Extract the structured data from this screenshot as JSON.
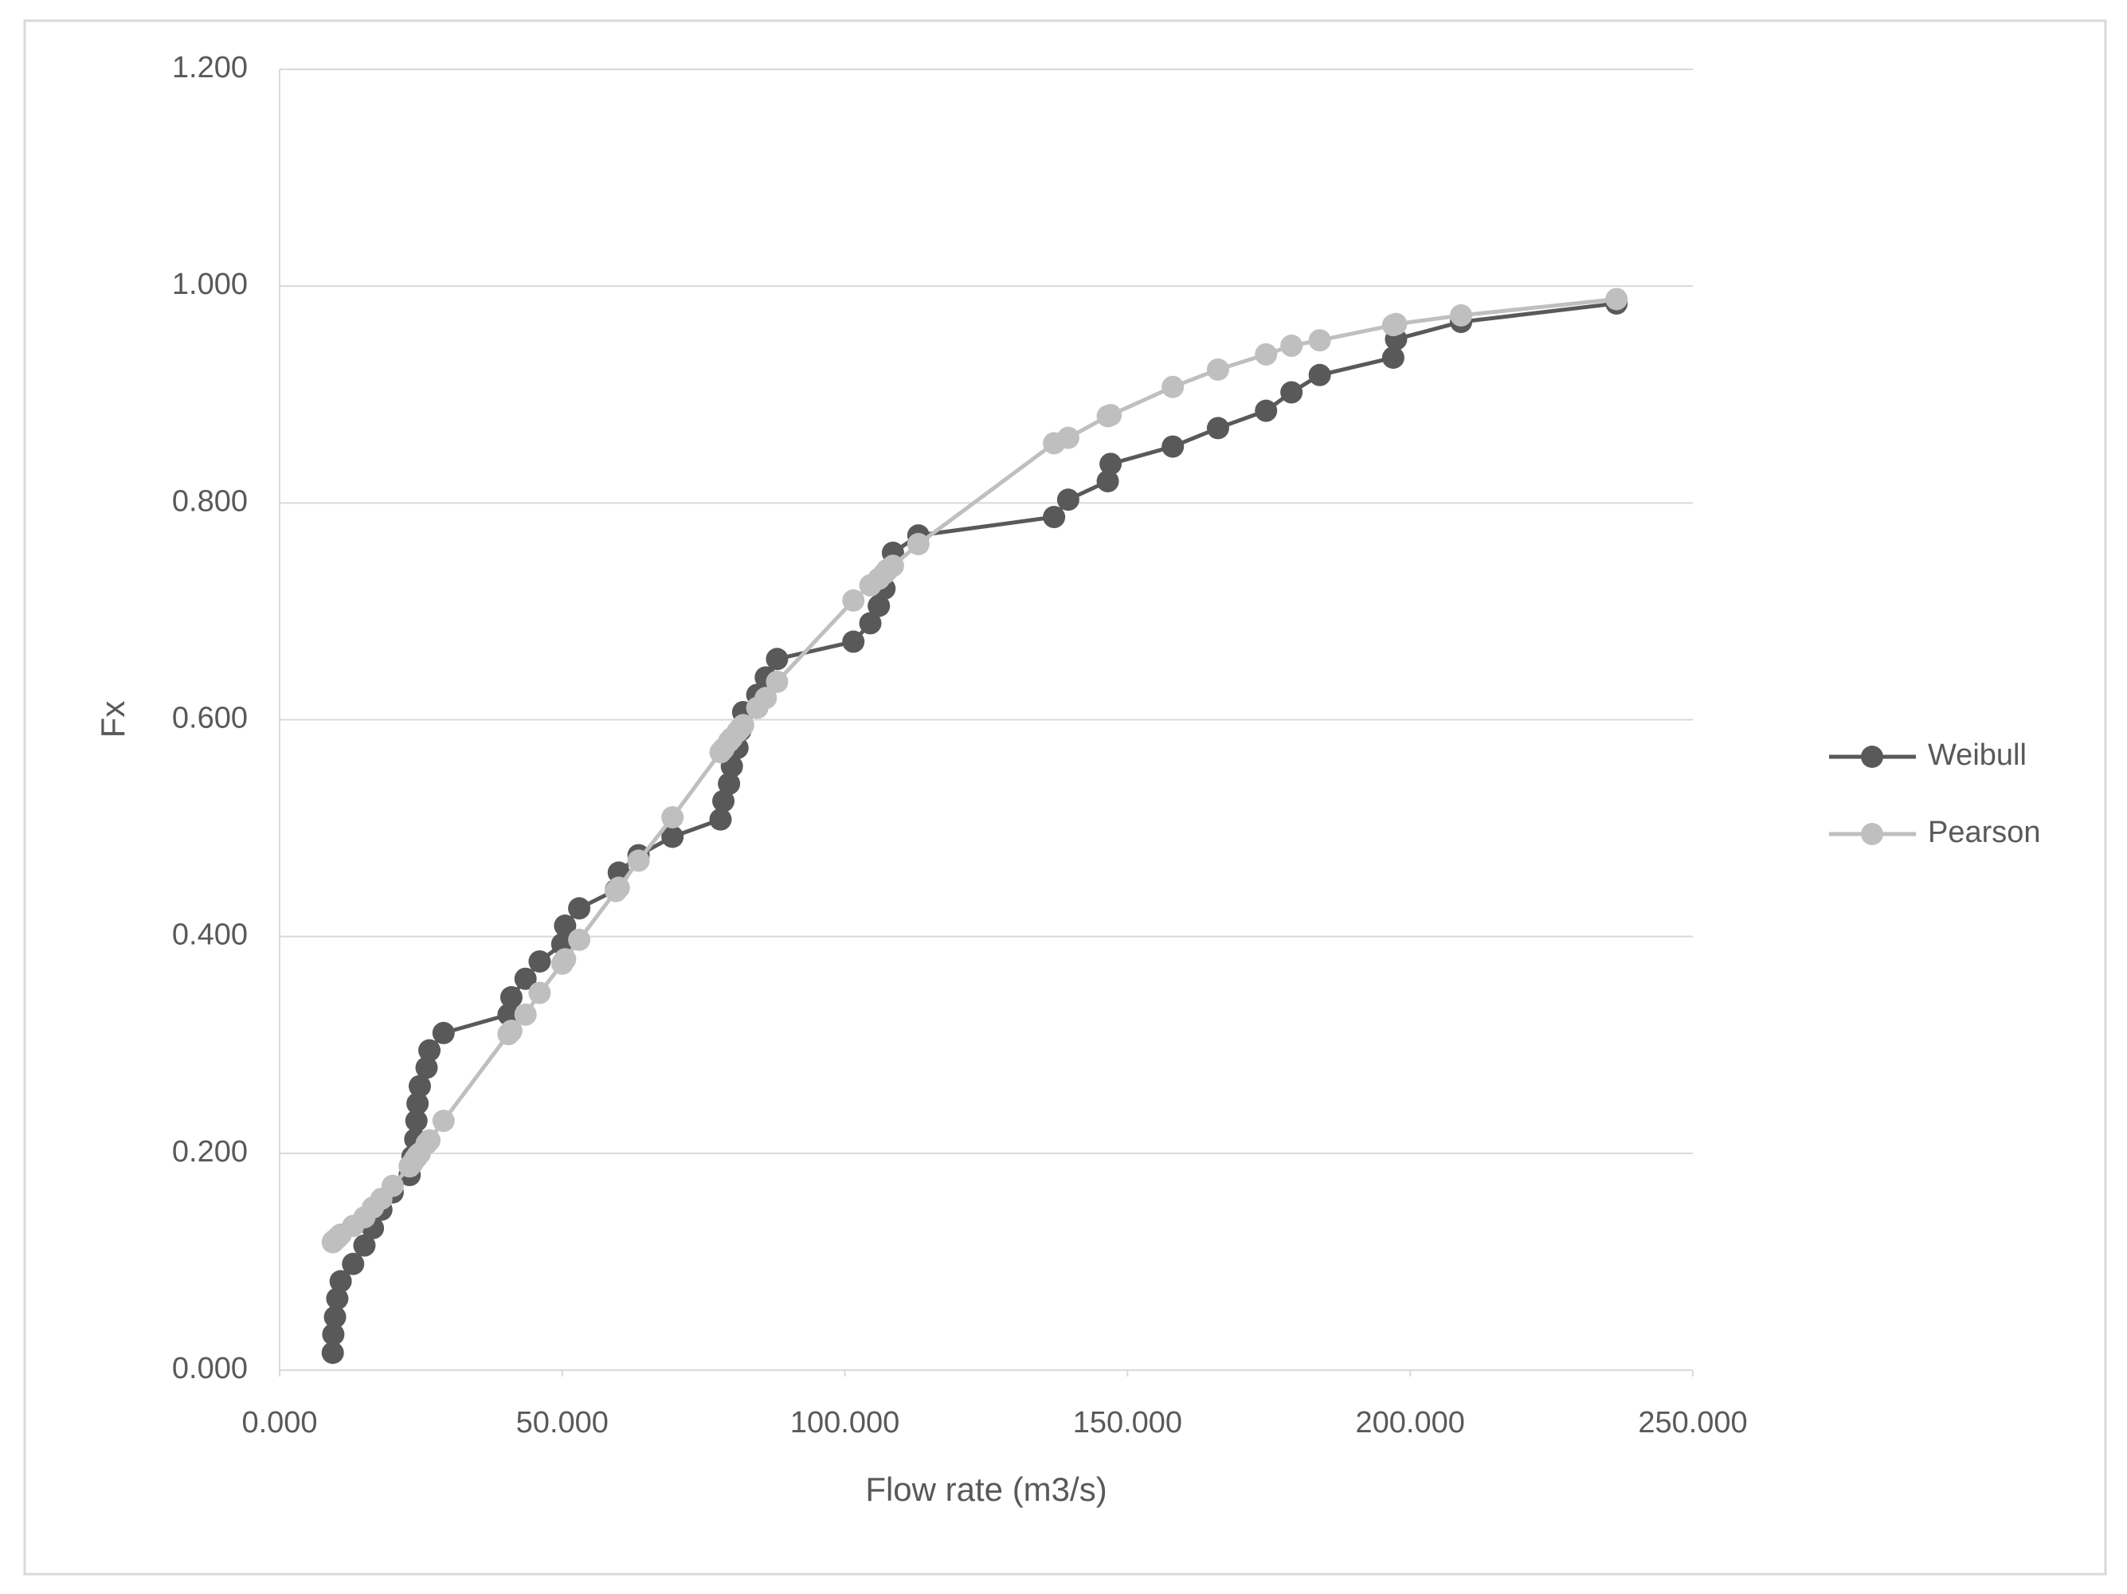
{
  "chart_data": {
    "type": "line",
    "x_label": "Flow rate (m3/s)",
    "y_label": "Fx",
    "x": [
      9.4,
      9.5,
      9.8,
      10.2,
      10.8,
      13,
      15,
      16.5,
      18,
      20,
      23,
      23.5,
      24,
      24.2,
      24.4,
      24.8,
      26,
      26.5,
      29,
      40.5,
      41,
      43.5,
      46,
      50,
      50.5,
      53,
      59.5,
      60,
      63.5,
      69.5,
      78,
      78.5,
      79.5,
      80,
      81,
      81.5,
      82,
      84.5,
      86,
      88,
      101.5,
      104.5,
      106,
      107,
      107.5,
      108.5,
      113,
      137,
      139.5,
      146.5,
      147,
      158,
      166,
      174.5,
      179,
      184,
      197,
      197.5,
      209,
      236.5
    ],
    "series": [
      {
        "name": "Weibull",
        "color": "#595959",
        "values": [
          0.016,
          0.033,
          0.049,
          0.066,
          0.082,
          0.098,
          0.115,
          0.131,
          0.148,
          0.164,
          0.18,
          0.197,
          0.213,
          0.23,
          0.246,
          0.262,
          0.279,
          0.295,
          0.311,
          0.328,
          0.344,
          0.361,
          0.377,
          0.393,
          0.41,
          0.426,
          0.443,
          0.459,
          0.475,
          0.492,
          0.508,
          0.525,
          0.541,
          0.557,
          0.574,
          0.59,
          0.607,
          0.623,
          0.639,
          0.656,
          0.672,
          0.689,
          0.705,
          0.721,
          0.738,
          0.754,
          0.77,
          0.787,
          0.803,
          0.82,
          0.836,
          0.852,
          0.869,
          0.885,
          0.902,
          0.918,
          0.934,
          0.951,
          0.967,
          0.984
        ]
      },
      {
        "name": "Pearson",
        "color": "#bfbfbf",
        "values": [
          0.118,
          0.119,
          0.12,
          0.122,
          0.125,
          0.133,
          0.141,
          0.15,
          0.158,
          0.17,
          0.188,
          0.191,
          0.195,
          0.196,
          0.198,
          0.2,
          0.209,
          0.212,
          0.23,
          0.31,
          0.313,
          0.328,
          0.348,
          0.375,
          0.379,
          0.397,
          0.442,
          0.445,
          0.47,
          0.51,
          0.57,
          0.573,
          0.58,
          0.583,
          0.589,
          0.592,
          0.595,
          0.611,
          0.62,
          0.635,
          0.71,
          0.724,
          0.73,
          0.735,
          0.738,
          0.742,
          0.762,
          0.855,
          0.86,
          0.88,
          0.881,
          0.907,
          0.923,
          0.937,
          0.945,
          0.95,
          0.964,
          0.965,
          0.973,
          0.988
        ]
      }
    ],
    "xlim": [
      0,
      250
    ],
    "xticks": [
      {
        "value": 0,
        "label": "0.000"
      },
      {
        "value": 50,
        "label": "50.000"
      },
      {
        "value": 100,
        "label": "100.000"
      },
      {
        "value": 150,
        "label": "150.000"
      },
      {
        "value": 200,
        "label": "200.000"
      },
      {
        "value": 250,
        "label": "250.000"
      }
    ],
    "ylim": [
      0,
      1.2
    ],
    "yticks": [
      {
        "value": 0,
        "label": "0.000"
      },
      {
        "value": 0.2,
        "label": "0.200"
      },
      {
        "value": 0.4,
        "label": "0.400"
      },
      {
        "value": 0.6,
        "label": "0.600"
      },
      {
        "value": 0.8,
        "label": "0.800"
      },
      {
        "value": 1,
        "label": "1.000"
      },
      {
        "value": 1.2,
        "label": "1.200"
      }
    ],
    "grid": true,
    "legend": "right"
  }
}
